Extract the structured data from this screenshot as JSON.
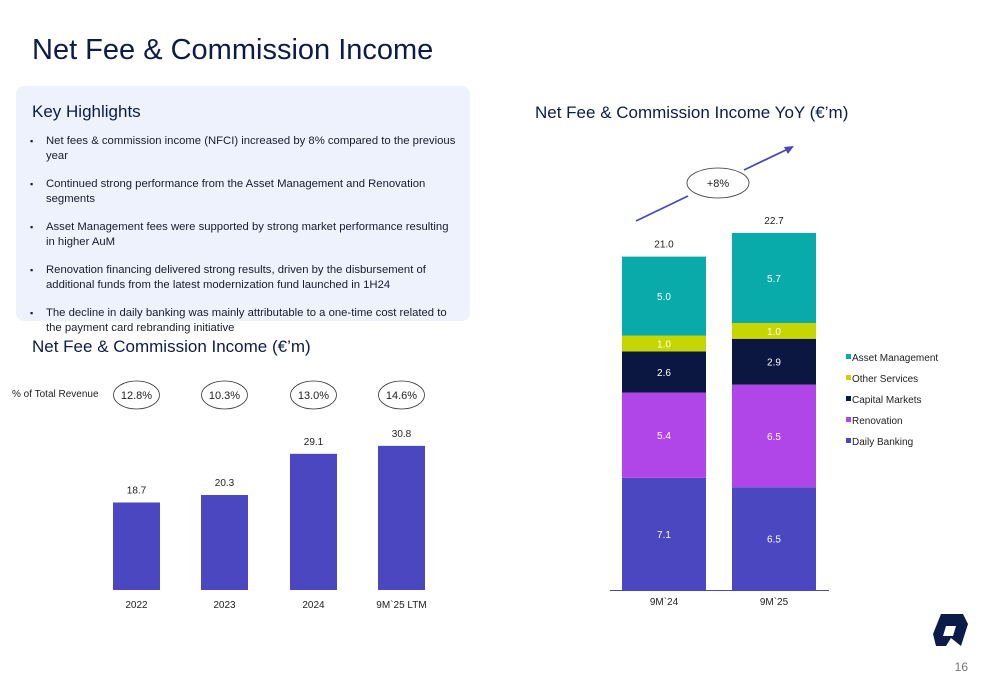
{
  "title": "Net Fee & Commission Income",
  "highlights": {
    "heading": "Key Highlights",
    "items": [
      "Net fees & commission income (NFCI) increased by 8% compared to the previous year",
      "Continued strong performance from the Asset Management and Renovation segments",
      "Asset Management fees were supported by strong market performance resulting in higher AuM",
      "Renovation financing delivered strong results, driven by the disbursement of additional funds from the latest modernization fund launched in 1H24",
      "The decline in daily banking was mainly attributable to a one-time cost related to the payment card rebranding initiative"
    ]
  },
  "page_number": "16",
  "chart_data": [
    {
      "type": "bar",
      "title": "Net Fee & Commission Income (€’m)",
      "categories": [
        "2022",
        "2023",
        "2024",
        "9M`25 LTM"
      ],
      "values": [
        18.7,
        20.3,
        29.1,
        30.8
      ],
      "labels": [
        "18.7",
        "20.3",
        "29.1",
        "30.8"
      ],
      "ylim": [
        0,
        32
      ],
      "color": "#4b47c0",
      "annotation_label": "% of Total Revenue",
      "annotations": [
        "12.8%",
        "10.3%",
        "13.0%",
        "14.6%"
      ]
    },
    {
      "type": "bar",
      "stacked": true,
      "title": "Net Fee & Commission Income YoY (€’m)",
      "categories": [
        "9M`24",
        "9M`25"
      ],
      "totals": [
        "21.0",
        "22.7"
      ],
      "growth_label": "+8%",
      "legend_position": "right",
      "series": [
        {
          "name": "Daily Banking",
          "color": "#4b47c0",
          "values": [
            7.1,
            6.5
          ]
        },
        {
          "name": "Renovation",
          "color": "#b146e8",
          "values": [
            5.4,
            6.5
          ]
        },
        {
          "name": "Capital Markets",
          "color": "#0b1740",
          "values": [
            2.6,
            2.9
          ]
        },
        {
          "name": "Other Services",
          "color": "#c5d600",
          "values": [
            1.0,
            1.0
          ]
        },
        {
          "name": "Asset Management",
          "color": "#08aaaa",
          "values": [
            5.0,
            5.7
          ]
        }
      ]
    }
  ]
}
